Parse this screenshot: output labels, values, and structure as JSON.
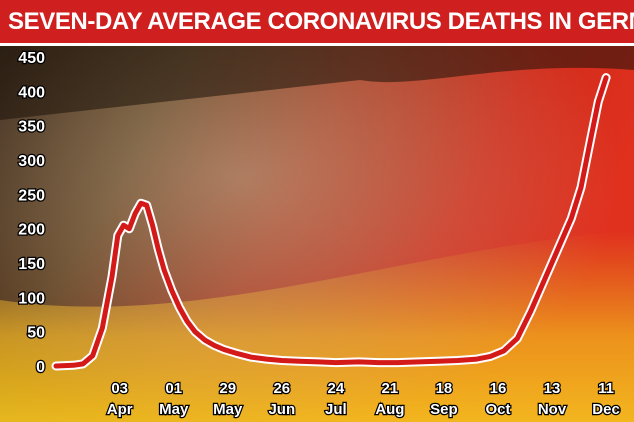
{
  "title": "SEVEN-DAY AVERAGE CORONAVIRUS DEATHS IN GERMANY",
  "colors": {
    "title_bg": "#cf1f1f",
    "line": "#d41919",
    "line_outline": "#ffffff",
    "axis_text": "#ffffff"
  },
  "chart_data": {
    "type": "line",
    "title": "SEVEN-DAY AVERAGE CORONAVIRUS DEATHS IN GERMANY",
    "xlabel": "",
    "ylabel": "",
    "ylim": [
      0,
      450
    ],
    "xlim": [
      "2020-03-01",
      "2020-12-12"
    ],
    "grid": false,
    "yticks": [
      0,
      50,
      100,
      150,
      200,
      250,
      300,
      350,
      400,
      450
    ],
    "xticks": [
      {
        "date": "2020-04-03",
        "day": "03",
        "month": "Apr"
      },
      {
        "date": "2020-05-01",
        "day": "01",
        "month": "May"
      },
      {
        "date": "2020-05-29",
        "day": "29",
        "month": "May"
      },
      {
        "date": "2020-06-26",
        "day": "26",
        "month": "Jun"
      },
      {
        "date": "2020-07-24",
        "day": "24",
        "month": "Jul"
      },
      {
        "date": "2020-08-21",
        "day": "21",
        "month": "Aug"
      },
      {
        "date": "2020-09-18",
        "day": "18",
        "month": "Sep"
      },
      {
        "date": "2020-10-16",
        "day": "16",
        "month": "Oct"
      },
      {
        "date": "2020-11-13",
        "day": "13",
        "month": "Nov"
      },
      {
        "date": "2020-12-11",
        "day": "11",
        "month": "Dec"
      }
    ],
    "series": [
      {
        "points": [
          [
            "2020-03-01",
            0
          ],
          [
            "2020-03-10",
            1
          ],
          [
            "2020-03-15",
            3
          ],
          [
            "2020-03-20",
            15
          ],
          [
            "2020-03-25",
            55
          ],
          [
            "2020-03-30",
            130
          ],
          [
            "2020-04-02",
            190
          ],
          [
            "2020-04-05",
            205
          ],
          [
            "2020-04-08",
            200
          ],
          [
            "2020-04-11",
            222
          ],
          [
            "2020-04-14",
            237
          ],
          [
            "2020-04-17",
            234
          ],
          [
            "2020-04-20",
            205
          ],
          [
            "2020-04-23",
            170
          ],
          [
            "2020-04-26",
            140
          ],
          [
            "2020-04-30",
            110
          ],
          [
            "2020-05-04",
            85
          ],
          [
            "2020-05-08",
            65
          ],
          [
            "2020-05-12",
            50
          ],
          [
            "2020-05-17",
            38
          ],
          [
            "2020-05-22",
            30
          ],
          [
            "2020-05-27",
            24
          ],
          [
            "2020-06-03",
            18
          ],
          [
            "2020-06-10",
            13
          ],
          [
            "2020-06-18",
            10
          ],
          [
            "2020-06-26",
            8
          ],
          [
            "2020-07-05",
            7
          ],
          [
            "2020-07-15",
            6
          ],
          [
            "2020-07-24",
            5
          ],
          [
            "2020-08-05",
            6
          ],
          [
            "2020-08-15",
            5
          ],
          [
            "2020-08-25",
            5
          ],
          [
            "2020-09-05",
            6
          ],
          [
            "2020-09-15",
            7
          ],
          [
            "2020-09-25",
            8
          ],
          [
            "2020-10-05",
            10
          ],
          [
            "2020-10-12",
            14
          ],
          [
            "2020-10-19",
            22
          ],
          [
            "2020-10-26",
            40
          ],
          [
            "2020-11-02",
            80
          ],
          [
            "2020-11-09",
            125
          ],
          [
            "2020-11-16",
            170
          ],
          [
            "2020-11-23",
            215
          ],
          [
            "2020-11-28",
            260
          ],
          [
            "2020-12-03",
            330
          ],
          [
            "2020-12-07",
            385
          ],
          [
            "2020-12-11",
            420
          ]
        ]
      }
    ]
  }
}
